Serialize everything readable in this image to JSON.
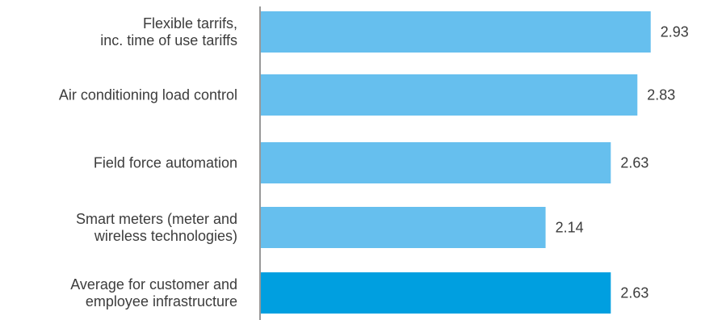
{
  "chart_data": {
    "type": "bar",
    "orientation": "horizontal",
    "categories": [
      [
        "Flexible tarrifs,",
        "inc. time of use tariffs"
      ],
      [
        "Air conditioning load control"
      ],
      [
        "Field force automation"
      ],
      [
        "Smart meters (meter and",
        "wireless technologies)"
      ],
      [
        "Average for customer and",
        "employee infrastructure"
      ]
    ],
    "values": [
      2.93,
      2.83,
      2.63,
      2.14,
      2.63
    ],
    "value_labels": [
      "2.93",
      "2.83",
      "2.63",
      "2.14",
      "2.63"
    ],
    "highlight_index": 4,
    "xlim": [
      0,
      3.15
    ],
    "grid": false,
    "legend": "none",
    "title": "",
    "xlabel": "",
    "ylabel": ""
  },
  "colors": {
    "bar": "#66bfee",
    "bar_highlight": "#009fe0",
    "axis": "#555555",
    "text": "#3c3c3c"
  }
}
